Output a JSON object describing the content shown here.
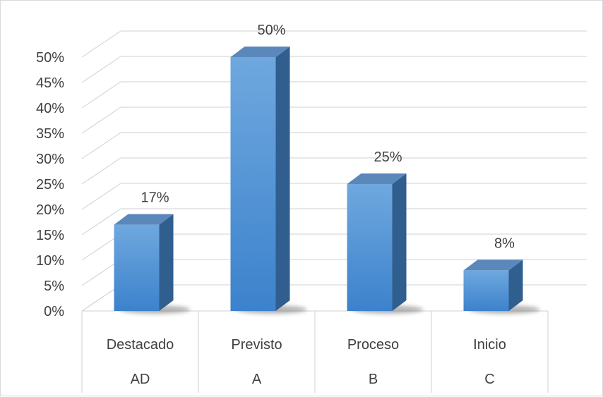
{
  "chart_data": {
    "type": "bar",
    "style": "3d-column",
    "categories": [
      {
        "level1": "Destacado",
        "level2": "AD"
      },
      {
        "level1": "Previsto",
        "level2": "A"
      },
      {
        "level1": "Proceso",
        "level2": "B"
      },
      {
        "level1": "Inicio",
        "level2": "C"
      }
    ],
    "values": [
      17,
      50,
      25,
      8
    ],
    "data_labels": [
      "17%",
      "50%",
      "25%",
      "8%"
    ],
    "y_ticks": [
      "0%",
      "5%",
      "10%",
      "15%",
      "20%",
      "25%",
      "30%",
      "35%",
      "40%",
      "45%",
      "50%"
    ],
    "ylim": [
      0,
      50
    ],
    "y_unit": "percent",
    "title": "",
    "xlabel": "",
    "ylabel": "",
    "grid": true,
    "legend": "none",
    "colors": {
      "bar_front_top": "#6fa8df",
      "bar_front_bottom": "#3c82cc",
      "bar_side": "#2f5e8f",
      "bar_top": "#5a88bb",
      "gridline": "#d0d0d0",
      "axis_text": "#404040",
      "label_text": "#404040",
      "shadow": "#7a7a7a"
    }
  }
}
